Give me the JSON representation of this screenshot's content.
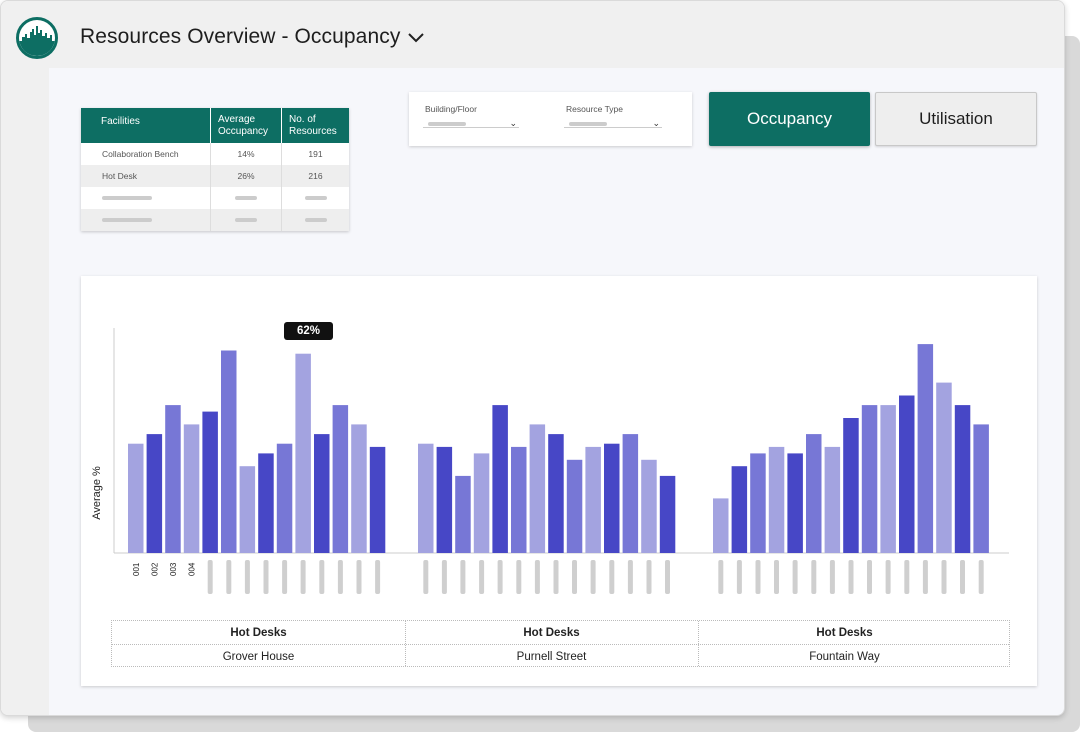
{
  "app": {
    "title": "Resources Overview - Occupancy",
    "logo_icon": "city-skyline-logo",
    "title_dropdown_icon": "chevron-down-icon"
  },
  "colors": {
    "brand": "#0d6e63",
    "bar_light": "#a3a3e0",
    "bar_mid": "#7777d6",
    "bar_dark": "#4747c6",
    "tooltip_bg": "#111111"
  },
  "facilities_table": {
    "headers": [
      "Facilities",
      "Average Occupancy",
      "No. of Resources"
    ],
    "rows": [
      {
        "facility": "Collaboration Bench",
        "avg_occupancy": "14%",
        "resources": "191"
      },
      {
        "facility": "Hot Desk",
        "avg_occupancy": "26%",
        "resources": "216"
      }
    ]
  },
  "filters": {
    "building_floor_label": "Building/Floor",
    "resource_type_label": "Resource Type"
  },
  "buttons": {
    "occupancy": "Occupancy",
    "utilisation": "Utilisation"
  },
  "chart_data": {
    "type": "bar",
    "ylabel": "Average %",
    "ylim": [
      0,
      70
    ],
    "tooltip": "62%",
    "x_tick_labels": [
      "001",
      "002",
      "003",
      "004"
    ],
    "groups": [
      {
        "category": "Hot Desks",
        "building": "Grover House",
        "values": [
          34,
          37,
          46,
          40,
          44,
          63,
          27,
          31,
          34,
          62,
          37,
          46,
          40,
          33
        ],
        "shades": [
          "light",
          "dark",
          "mid",
          "light",
          "dark",
          "mid",
          "light",
          "dark",
          "mid",
          "light",
          "dark",
          "mid",
          "light",
          "dark"
        ]
      },
      {
        "category": "Hot Desks",
        "building": "Purnell Street",
        "values": [
          34,
          33,
          24,
          31,
          46,
          33,
          40,
          37,
          29,
          33,
          34,
          37,
          29,
          24
        ],
        "shades": [
          "light",
          "dark",
          "mid",
          "light",
          "dark",
          "mid",
          "light",
          "dark",
          "mid",
          "light",
          "dark",
          "mid",
          "light",
          "dark"
        ]
      },
      {
        "category": "Hot Desks",
        "building": "Fountain Way",
        "values": [
          17,
          27,
          31,
          33,
          31,
          37,
          33,
          42,
          46,
          46,
          49,
          65,
          53,
          46,
          40
        ],
        "shades": [
          "light",
          "dark",
          "mid",
          "light",
          "dark",
          "mid",
          "light",
          "dark",
          "mid",
          "light",
          "dark",
          "mid",
          "light",
          "dark",
          "mid"
        ]
      }
    ]
  }
}
